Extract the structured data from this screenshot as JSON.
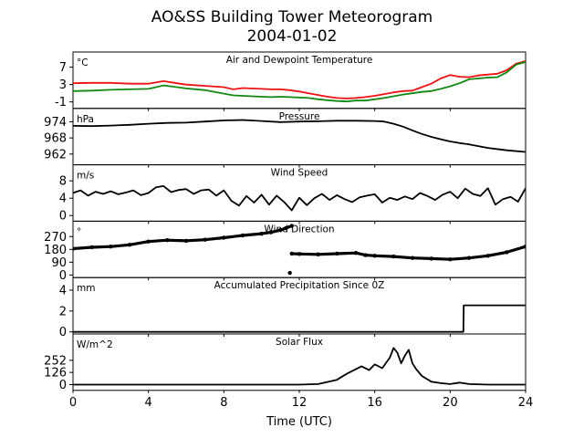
{
  "figure": {
    "title_line1": "AO&SS Building Tower Meteorogram",
    "title_line2": "2004-01-02",
    "xlabel": "Time (UTC)",
    "x_ticks": [
      0,
      4,
      8,
      12,
      16,
      20,
      24
    ],
    "xlim": [
      0,
      24
    ]
  },
  "chart_data": [
    {
      "type": "line",
      "title": "Air and Dewpoint Temperature",
      "unit_label": "°C",
      "ylim": [
        -2.5,
        10.5
      ],
      "y_ticks": [
        -1,
        3,
        7
      ],
      "series": [
        {
          "color": "#ee1111",
          "x": [
            0,
            1,
            2,
            3,
            4,
            4.8,
            5.5,
            6,
            7,
            8,
            8.5,
            9,
            10,
            10.5,
            11,
            11.5,
            12,
            12.5,
            13,
            13.5,
            14,
            14.5,
            15,
            15.5,
            16,
            16.5,
            17,
            17.5,
            18,
            18.5,
            19,
            19.5,
            20,
            20.5,
            21,
            21.5,
            22,
            22.5,
            23,
            23.5,
            24
          ],
          "y": [
            3.3,
            3.4,
            3.4,
            3.2,
            3.2,
            3.8,
            3.3,
            3.0,
            2.7,
            2.4,
            1.9,
            2.2,
            2.0,
            1.9,
            1.9,
            1.7,
            1.4,
            1.0,
            0.6,
            0.2,
            -0.1,
            -0.2,
            -0.1,
            0.1,
            0.4,
            0.8,
            1.2,
            1.5,
            1.6,
            2.4,
            3.2,
            4.4,
            5.2,
            4.8,
            4.7,
            5.1,
            5.3,
            5.5,
            6.3,
            7.8,
            8.4
          ]
        },
        {
          "color": "#118811",
          "x": [
            0,
            1,
            2,
            3,
            4,
            4.8,
            5.5,
            6,
            7,
            8,
            8.5,
            9,
            10,
            10.5,
            11,
            11.5,
            12,
            12.5,
            13,
            13.5,
            14,
            14.5,
            15,
            15.5,
            16,
            16.5,
            17,
            17.5,
            18,
            18.5,
            19,
            19.5,
            20,
            20.5,
            21,
            21.5,
            22,
            22.5,
            23,
            23.5,
            24
          ],
          "y": [
            1.5,
            1.6,
            1.8,
            1.9,
            2.0,
            2.8,
            2.4,
            2.1,
            1.7,
            0.9,
            0.5,
            0.4,
            0.2,
            0.1,
            0.2,
            0.1,
            0.0,
            -0.1,
            -0.4,
            -0.6,
            -0.8,
            -0.9,
            -0.7,
            -0.7,
            -0.4,
            -0.1,
            0.3,
            0.7,
            1.0,
            1.3,
            1.5,
            2.0,
            2.6,
            3.3,
            4.2,
            4.4,
            4.6,
            4.7,
            5.8,
            7.6,
            8.2
          ]
        }
      ]
    },
    {
      "type": "line",
      "title": "Pressure",
      "unit_label": "hPa",
      "ylim": [
        958,
        979
      ],
      "y_ticks": [
        962,
        968,
        974
      ],
      "series": [
        {
          "color": "#000000",
          "x": [
            0,
            1,
            2,
            3,
            4,
            5,
            6,
            7,
            8,
            9,
            10,
            11,
            12,
            13,
            14,
            15,
            16,
            16.5,
            17,
            17.5,
            18,
            18.5,
            19,
            19.5,
            20,
            20.5,
            21,
            22,
            23,
            24
          ],
          "y": [
            972.5,
            972.4,
            972.6,
            972.9,
            973.3,
            973.6,
            973.7,
            974.1,
            974.5,
            974.7,
            974.3,
            973.9,
            974.1,
            974.2,
            974.4,
            974.4,
            974.3,
            974.1,
            973.3,
            972.2,
            970.8,
            969.5,
            968.4,
            967.5,
            966.7,
            966.1,
            965.6,
            964.3,
            963.4,
            962.8
          ]
        }
      ]
    },
    {
      "type": "line",
      "title": "Wind Speed",
      "unit_label": "m/s",
      "ylim": [
        -1.3,
        11.7
      ],
      "y_ticks": [
        0,
        4,
        8
      ],
      "series": [
        {
          "color": "#000000",
          "x": [
            0,
            0.4,
            0.8,
            1.2,
            1.6,
            2,
            2.4,
            2.8,
            3.2,
            3.6,
            4,
            4.4,
            4.8,
            5.2,
            5.6,
            6,
            6.4,
            6.8,
            7.2,
            7.6,
            8,
            8.4,
            8.8,
            9.2,
            9.6,
            10,
            10.4,
            10.8,
            11.2,
            11.6,
            12,
            12.4,
            12.8,
            13.2,
            13.6,
            14,
            14.4,
            14.8,
            15.2,
            15.6,
            16,
            16.4,
            16.8,
            17.2,
            17.6,
            18,
            18.4,
            18.8,
            19.2,
            19.6,
            20,
            20.4,
            20.8,
            21.2,
            21.6,
            22,
            22.4,
            22.8,
            23.2,
            23.6,
            24
          ],
          "y": [
            5.2,
            5.8,
            4.6,
            5.5,
            5.0,
            5.6,
            4.9,
            5.3,
            5.8,
            4.7,
            5.2,
            6.5,
            6.8,
            5.4,
            5.9,
            6.1,
            5.0,
            5.8,
            6.0,
            4.6,
            5.8,
            3.4,
            2.3,
            4.5,
            3.0,
            4.8,
            2.5,
            4.6,
            3.1,
            1.2,
            4.1,
            2.4,
            4.0,
            5.0,
            3.6,
            4.7,
            3.8,
            3.1,
            4.2,
            4.6,
            4.9,
            3.0,
            4.1,
            3.6,
            4.4,
            3.8,
            5.2,
            4.5,
            3.6,
            4.8,
            5.5,
            4.0,
            6.2,
            5.0,
            4.5,
            6.3,
            2.5,
            3.8,
            4.3,
            3.2,
            6.3
          ]
        }
      ]
    },
    {
      "type": "scatter",
      "title": "Wind Direction",
      "unit_label": "°",
      "ylim": [
        -18,
        378
      ],
      "y_ticks": [
        0,
        90,
        180,
        270
      ],
      "series": [
        {
          "color": "#000000",
          "x": [
            0,
            1,
            2,
            3,
            4,
            5,
            6,
            7,
            8,
            9,
            10,
            10.5,
            11,
            11.3,
            11.6
          ],
          "y": [
            185,
            195,
            200,
            212,
            235,
            245,
            240,
            248,
            262,
            278,
            290,
            300,
            315,
            330,
            345
          ]
        },
        {
          "color": "#000000",
          "x": [
            11.6,
            12,
            13,
            14,
            15,
            15.5,
            16,
            17,
            18,
            19,
            20,
            21,
            22,
            23,
            24
          ],
          "y": [
            150,
            148,
            145,
            150,
            155,
            140,
            135,
            130,
            120,
            115,
            110,
            120,
            135,
            160,
            200
          ]
        },
        {
          "color": "#000000",
          "x": [
            11.5
          ],
          "y": [
            15
          ]
        }
      ]
    },
    {
      "type": "line",
      "title": "Accumulated Precipitation Since 0Z",
      "unit_label": "mm",
      "ylim": [
        -0.2,
        5.2
      ],
      "y_ticks": [
        0,
        2,
        4
      ],
      "series": [
        {
          "color": "#000000",
          "x": [
            0,
            20.7,
            20.72,
            24
          ],
          "y": [
            0,
            0,
            2.54,
            2.54
          ]
        }
      ]
    },
    {
      "type": "line",
      "title": "Solar Flux",
      "unit_label": "W/m^2",
      "ylim": [
        -60,
        525
      ],
      "y_ticks": [
        0,
        126,
        252
      ],
      "series": [
        {
          "color": "#000000",
          "x": [
            0,
            12,
            13,
            14,
            14.5,
            15,
            15.3,
            15.7,
            16,
            16.4,
            16.8,
            17,
            17.2,
            17.4,
            17.6,
            17.8,
            18,
            18.2,
            18.5,
            19,
            19.5,
            20,
            20.5,
            21,
            22,
            23,
            24
          ],
          "y": [
            0,
            0,
            5,
            50,
            110,
            160,
            190,
            150,
            210,
            170,
            280,
            380,
            330,
            220,
            300,
            360,
            220,
            160,
            90,
            30,
            15,
            5,
            20,
            5,
            0,
            0,
            0
          ]
        }
      ]
    }
  ]
}
